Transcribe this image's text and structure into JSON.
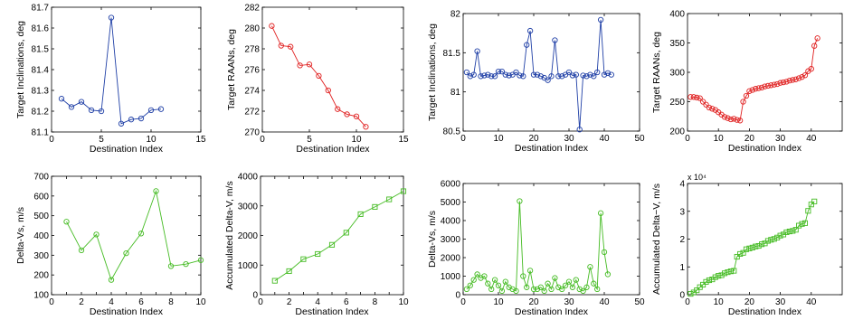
{
  "chart_data": [
    {
      "type": "line",
      "xlabel": "Destination Index",
      "ylabel": "Target Inclinations, deg",
      "xlim": [
        0,
        15
      ],
      "ylim": [
        81.1,
        81.7
      ],
      "xticks": [
        0,
        5,
        10,
        15
      ],
      "yticks": [
        81.1,
        81.2,
        81.3,
        81.4,
        81.5,
        81.6,
        81.7
      ],
      "xtick_labels": [
        "0",
        "5",
        "10",
        "15"
      ],
      "ytick_labels": [
        "81.1",
        "81.2",
        "81.3",
        "81.4",
        "81.5",
        "81.6",
        "81.7"
      ],
      "x10": "",
      "color": "#1f3fa6",
      "marker": "circle",
      "series": [
        {
          "x": [
            1,
            2,
            3,
            4,
            5,
            6,
            7,
            8,
            9,
            10,
            11
          ],
          "y": [
            81.26,
            81.22,
            81.245,
            81.205,
            81.2,
            81.65,
            81.14,
            81.16,
            81.165,
            81.205,
            81.21
          ]
        }
      ]
    },
    {
      "type": "line",
      "xlabel": "Destination Index",
      "ylabel": "Target RAANs, deg",
      "xlim": [
        0,
        15
      ],
      "ylim": [
        270,
        282
      ],
      "xticks": [
        0,
        5,
        10,
        15
      ],
      "yticks": [
        270,
        272,
        274,
        276,
        278,
        280,
        282
      ],
      "xtick_labels": [
        "0",
        "5",
        "10",
        "15"
      ],
      "ytick_labels": [
        "270",
        "272",
        "274",
        "276",
        "278",
        "280",
        "282"
      ],
      "x10": "",
      "color": "#e02020",
      "marker": "circle",
      "series": [
        {
          "x": [
            1,
            2,
            3,
            4,
            5,
            6,
            7,
            8,
            9,
            10,
            11
          ],
          "y": [
            280.2,
            278.3,
            278.2,
            276.4,
            276.5,
            275.4,
            274.0,
            272.2,
            271.7,
            271.5,
            270.5
          ]
        }
      ]
    },
    {
      "type": "line",
      "xlabel": "Destination Index",
      "ylabel": "Target Inclinations, deg",
      "xlim": [
        0,
        50
      ],
      "ylim": [
        80.5,
        82
      ],
      "xticks": [
        0,
        10,
        20,
        30,
        40,
        50
      ],
      "yticks": [
        80.5,
        81,
        81.5,
        82
      ],
      "xtick_labels": [
        "0",
        "10",
        "20",
        "30",
        "40",
        "50"
      ],
      "ytick_labels": [
        "80.5",
        "81",
        "81.5",
        "82"
      ],
      "x10": "",
      "color": "#1f3fa6",
      "marker": "circle",
      "series": [
        {
          "x": [
            1,
            2,
            3,
            4,
            5,
            6,
            7,
            8,
            9,
            10,
            11,
            12,
            13,
            14,
            15,
            16,
            17,
            18,
            19,
            20,
            21,
            22,
            23,
            24,
            25,
            26,
            27,
            28,
            29,
            30,
            31,
            32,
            33,
            34,
            35,
            36,
            37,
            38,
            39,
            40,
            41,
            42
          ],
          "y": [
            81.25,
            81.2,
            81.22,
            81.52,
            81.2,
            81.21,
            81.22,
            81.2,
            81.2,
            81.26,
            81.26,
            81.22,
            81.21,
            81.22,
            81.25,
            81.21,
            81.2,
            81.6,
            81.78,
            81.22,
            81.22,
            81.2,
            81.18,
            81.15,
            81.2,
            81.66,
            81.2,
            81.2,
            81.22,
            81.25,
            81.21,
            81.22,
            80.52,
            81.21,
            81.2,
            81.22,
            81.2,
            81.25,
            81.92,
            81.22,
            81.24,
            81.22
          ]
        }
      ]
    },
    {
      "type": "line",
      "xlabel": "Destination Index",
      "ylabel": "Target RAANs, deg",
      "xlim": [
        0,
        50
      ],
      "ylim": [
        200,
        400
      ],
      "xticks": [
        0,
        10,
        20,
        30,
        40
      ],
      "yticks": [
        200,
        250,
        300,
        350,
        400
      ],
      "xtick_labels": [
        "0",
        "10",
        "20",
        "30",
        "40"
      ],
      "ytick_labels": [
        "200",
        "250",
        "300",
        "350",
        "400"
      ],
      "x10": "",
      "color": "#e02020",
      "marker": "circle",
      "series": [
        {
          "x": [
            1,
            2,
            3,
            4,
            5,
            6,
            7,
            8,
            9,
            10,
            11,
            12,
            13,
            14,
            15,
            16,
            17,
            18,
            19,
            20,
            21,
            22,
            23,
            24,
            25,
            26,
            27,
            28,
            29,
            30,
            31,
            32,
            33,
            34,
            35,
            36,
            37,
            38,
            39,
            40,
            41,
            42
          ],
          "y": [
            258,
            258,
            257,
            256,
            250,
            245,
            240,
            238,
            236,
            232,
            228,
            224,
            222,
            220,
            221,
            219,
            218,
            250,
            260,
            268,
            270,
            272,
            273,
            274,
            276,
            277,
            278,
            279,
            280,
            282,
            283,
            284,
            286,
            287,
            288,
            290,
            292,
            295,
            302,
            306,
            345,
            358
          ]
        }
      ]
    },
    {
      "type": "line",
      "xlabel": "Destination Index",
      "ylabel": "Delta-Vs, m/s",
      "xlim": [
        0,
        10
      ],
      "ylim": [
        100,
        700
      ],
      "xticks": [
        0,
        1,
        2,
        3,
        4,
        5,
        6,
        7,
        8,
        9,
        10
      ],
      "yticks": [
        100,
        200,
        300,
        400,
        500,
        600,
        700
      ],
      "xtick_labels": [
        "0",
        "",
        "2",
        "",
        "4",
        "",
        "6",
        "",
        "8",
        "",
        "10"
      ],
      "ytick_labels": [
        "100",
        "200",
        "300",
        "400",
        "500",
        "600",
        "700"
      ],
      "x10": "",
      "color": "#44bb22",
      "marker": "circle",
      "series": [
        {
          "x": [
            1,
            2,
            3,
            4,
            5,
            6,
            7,
            8,
            9,
            10
          ],
          "y": [
            470,
            325,
            405,
            175,
            310,
            410,
            625,
            245,
            255,
            275
          ]
        }
      ]
    },
    {
      "type": "line",
      "xlabel": "Destination Index",
      "ylabel": "Accumulated Delta-V, m/s",
      "xlim": [
        0,
        10
      ],
      "ylim": [
        0,
        4000
      ],
      "xticks": [
        0,
        1,
        2,
        3,
        4,
        5,
        6,
        7,
        8,
        9,
        10
      ],
      "yticks": [
        0,
        1000,
        2000,
        3000,
        4000
      ],
      "xtick_labels": [
        "0",
        "",
        "2",
        "",
        "4",
        "",
        "6",
        "",
        "8",
        "",
        "10"
      ],
      "ytick_labels": [
        "0",
        "1000",
        "2000",
        "3000",
        "4000"
      ],
      "x10": "",
      "color": "#44bb22",
      "marker": "square",
      "series": [
        {
          "x": [
            1,
            2,
            3,
            4,
            5,
            6,
            7,
            8,
            9,
            10
          ],
          "y": [
            470,
            795,
            1200,
            1375,
            1685,
            2095,
            2720,
            2965,
            3220,
            3495
          ]
        }
      ]
    },
    {
      "type": "line",
      "xlabel": "Destination Index",
      "ylabel": "Delta-Vs, m/s",
      "xlim": [
        0,
        50
      ],
      "ylim": [
        0,
        6000
      ],
      "xticks": [
        0,
        10,
        20,
        30,
        40,
        50
      ],
      "yticks": [
        0,
        1000,
        2000,
        3000,
        4000,
        5000,
        6000
      ],
      "xtick_labels": [
        "0",
        "10",
        "20",
        "30",
        "40",
        "50"
      ],
      "ytick_labels": [
        "0",
        "1000",
        "2000",
        "3000",
        "4000",
        "5000",
        "6000"
      ],
      "x10": "",
      "color": "#44bb22",
      "marker": "circle",
      "series": [
        {
          "x": [
            1,
            2,
            3,
            4,
            5,
            6,
            7,
            8,
            9,
            10,
            11,
            12,
            13,
            14,
            15,
            16,
            17,
            18,
            19,
            20,
            21,
            22,
            23,
            24,
            25,
            26,
            27,
            28,
            29,
            30,
            31,
            32,
            33,
            34,
            35,
            36,
            37,
            38,
            39,
            40,
            41
          ],
          "y": [
            300,
            500,
            800,
            1100,
            900,
            1000,
            600,
            300,
            800,
            500,
            200,
            700,
            400,
            300,
            200,
            5050,
            1000,
            400,
            1300,
            300,
            300,
            400,
            200,
            600,
            300,
            900,
            400,
            300,
            500,
            700,
            400,
            800,
            300,
            200,
            400,
            1500,
            600,
            300,
            4400,
            2300,
            1100
          ]
        }
      ]
    },
    {
      "type": "line",
      "xlabel": "Destination Index",
      "ylabel": "Accumulated Delta−V, m/s",
      "xlim": [
        0,
        50
      ],
      "ylim": [
        0,
        40000
      ],
      "xticks": [
        0,
        10,
        20,
        30,
        40
      ],
      "yticks": [
        0,
        10000,
        20000,
        30000,
        40000
      ],
      "xtick_labels": [
        "0",
        "10",
        "20",
        "30",
        "40"
      ],
      "ytick_labels": [
        "0",
        "1",
        "2",
        "3",
        "4"
      ],
      "x10": "x 10⁴",
      "color": "#44bb22",
      "marker": "square",
      "series": [
        {
          "x": [
            1,
            2,
            3,
            4,
            5,
            6,
            7,
            8,
            9,
            10,
            11,
            12,
            13,
            14,
            15,
            16,
            17,
            18,
            19,
            20,
            21,
            22,
            23,
            24,
            25,
            26,
            27,
            28,
            29,
            30,
            31,
            32,
            33,
            34,
            35,
            36,
            37,
            38,
            39,
            40,
            41
          ],
          "y": [
            300,
            800,
            1600,
            2700,
            3600,
            4600,
            5200,
            5500,
            6300,
            6800,
            7000,
            7700,
            8100,
            8400,
            8600,
            13650,
            14650,
            15050,
            16350,
            16650,
            16950,
            17350,
            17550,
            18150,
            18450,
            19350,
            19750,
            20050,
            20550,
            21250,
            21650,
            22450,
            22750,
            22950,
            23350,
            24850,
            25450,
            25750,
            30150,
            32450,
            33550
          ]
        }
      ]
    }
  ]
}
